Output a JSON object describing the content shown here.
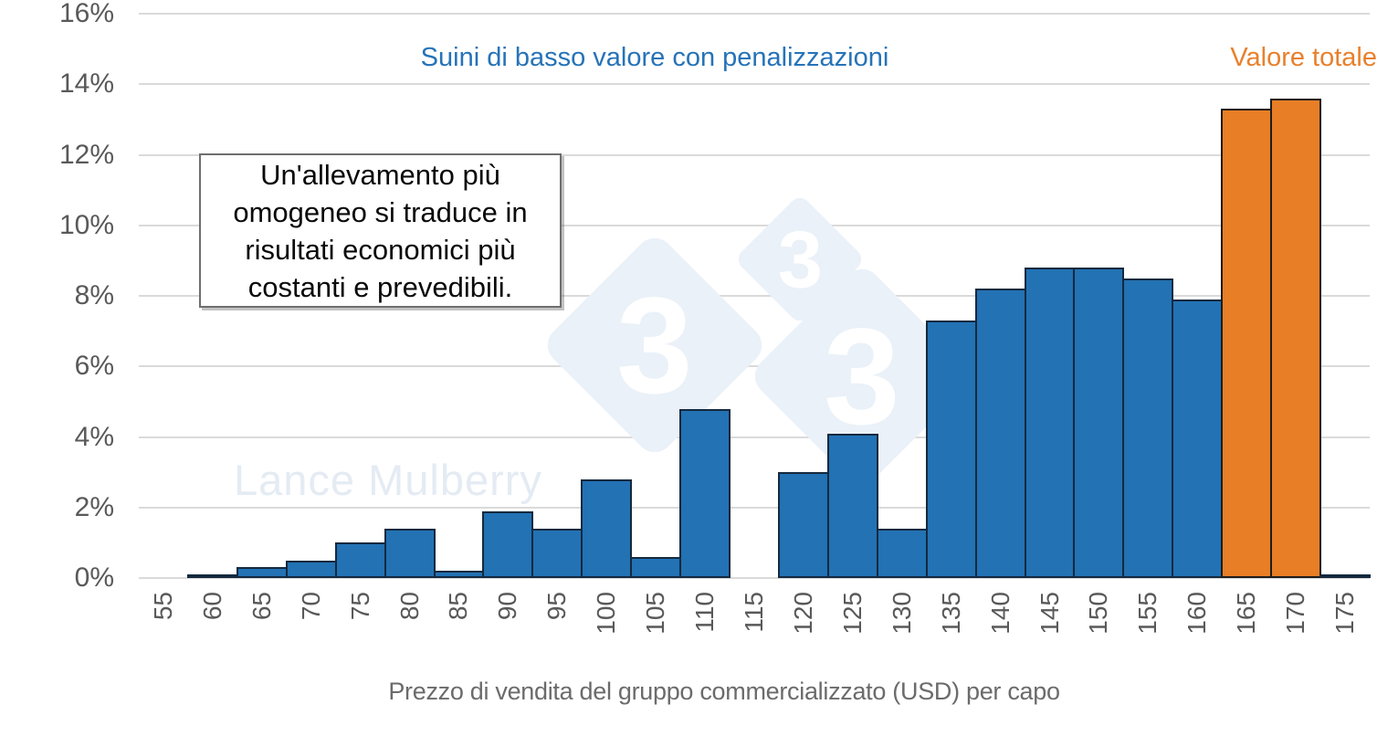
{
  "chart_data": {
    "type": "bar",
    "title": "Suini di basso valore con penalizzazioni",
    "title_color": "#2673b8",
    "xlabel": "Prezzo di vendita del gruppo commercializzato (USD) per capo",
    "ylim": [
      0,
      16
    ],
    "y_ticks": [
      {
        "value": 0,
        "label": "0%"
      },
      {
        "value": 2,
        "label": "2%"
      },
      {
        "value": 4,
        "label": "4%"
      },
      {
        "value": 6,
        "label": "6%"
      },
      {
        "value": 8,
        "label": "8%"
      },
      {
        "value": 10,
        "label": "10%"
      },
      {
        "value": 12,
        "label": "12%"
      },
      {
        "value": 14,
        "label": "14%"
      },
      {
        "value": 16,
        "label": "16%"
      }
    ],
    "groups": {
      "low": {
        "label": "Suini di basso valore con penalizzazioni",
        "color": "#2272b4",
        "border": "#14293e",
        "label_color": "#2673b8"
      },
      "total": {
        "label": "Valore totale",
        "color": "#e87e25",
        "border": "#1d1d1d",
        "label_color": "#e8802c"
      }
    },
    "legend_right": "Valore totale",
    "bars": [
      {
        "x": "55",
        "value": 0,
        "group": "low"
      },
      {
        "x": "60",
        "value": 0.1,
        "group": "low"
      },
      {
        "x": "65",
        "value": 0.3,
        "group": "low"
      },
      {
        "x": "70",
        "value": 0.5,
        "group": "low"
      },
      {
        "x": "75",
        "value": 1.0,
        "group": "low"
      },
      {
        "x": "80",
        "value": 1.4,
        "group": "low"
      },
      {
        "x": "85",
        "value": 0.2,
        "group": "low"
      },
      {
        "x": "90",
        "value": 1.9,
        "group": "low"
      },
      {
        "x": "95",
        "value": 1.4,
        "group": "low"
      },
      {
        "x": "100",
        "value": 2.8,
        "group": "low"
      },
      {
        "x": "105",
        "value": 0.6,
        "group": "low"
      },
      {
        "x": "110",
        "value": 4.8,
        "group": "low"
      },
      {
        "x": "115",
        "value": 0,
        "group": "low"
      },
      {
        "x": "120",
        "value": 3.0,
        "group": "low"
      },
      {
        "x": "125",
        "value": 4.1,
        "group": "low"
      },
      {
        "x": "130",
        "value": 1.4,
        "group": "low"
      },
      {
        "x": "135",
        "value": 7.3,
        "group": "low"
      },
      {
        "x": "140",
        "value": 8.2,
        "group": "low"
      },
      {
        "x": "145",
        "value": 8.8,
        "group": "low"
      },
      {
        "x": "150",
        "value": 8.8,
        "group": "low"
      },
      {
        "x": "155",
        "value": 8.5,
        "group": "low"
      },
      {
        "x": "160",
        "value": 7.9,
        "group": "low"
      },
      {
        "x": "165",
        "value": 13.3,
        "group": "total"
      },
      {
        "x": "170",
        "value": 13.6,
        "group": "total"
      },
      {
        "x": "175",
        "value": 0.1,
        "group": "low"
      }
    ],
    "annotation": {
      "text": "Un'allevamento più omogeneo si traduce in risultati economici più costanti e prevedibili."
    },
    "watermark": {
      "text": "Lance Mulberry",
      "logo_digits": [
        "3",
        "3",
        "3"
      ]
    },
    "grid": true,
    "legend_position": "top"
  }
}
